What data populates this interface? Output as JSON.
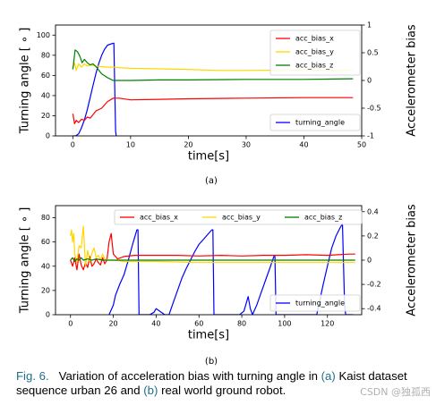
{
  "chart_data": [
    {
      "type": "line",
      "panel_label": "(a)",
      "xlabel": "time[s]",
      "ylabel_left": "Turning angle [ ∘ ]",
      "ylabel_right": "Accelerometer bias",
      "xlim": [
        -3,
        50
      ],
      "ylim_left": [
        0,
        110
      ],
      "ylim_right": [
        -1.0,
        1.0
      ],
      "xticks": [
        0,
        10,
        20,
        30,
        40,
        50
      ],
      "yticks_left": [
        0,
        20,
        40,
        60,
        80,
        100
      ],
      "yticks_right": [
        -1.0,
        -0.5,
        0.0,
        0.5,
        1.0
      ],
      "grid": false,
      "legend_top": {
        "placement": "top-right",
        "entries": [
          "acc_bias_x",
          "acc_bias_y",
          "acc_bias_z"
        ]
      },
      "legend_bottom": {
        "placement": "bottom-right",
        "entries": [
          "turning_angle"
        ]
      },
      "series": [
        {
          "name": "turning_angle",
          "axis": "left",
          "color": "#0000ff",
          "x": [
            0,
            0.5,
            1,
            1.5,
            2,
            2.5,
            3,
            3.5,
            4,
            4.5,
            5,
            5.5,
            6,
            7,
            7.1,
            7.4,
            7.5
          ],
          "y": [
            0,
            0,
            2,
            8,
            16,
            26,
            38,
            50,
            62,
            72,
            80,
            86,
            90,
            92,
            92,
            5,
            0
          ]
        },
        {
          "name": "acc_bias_x",
          "axis": "right",
          "color": "#ff0000",
          "x": [
            0,
            0.3,
            0.6,
            1,
            1.5,
            2,
            2.5,
            3,
            4,
            5,
            6,
            7,
            8,
            10,
            15,
            20,
            30,
            40,
            48.5
          ],
          "y": [
            -0.6,
            -0.78,
            -0.72,
            -0.76,
            -0.7,
            -0.72,
            -0.66,
            -0.68,
            -0.55,
            -0.5,
            -0.38,
            -0.32,
            -0.32,
            -0.35,
            -0.34,
            -0.33,
            -0.32,
            -0.31,
            -0.31
          ]
        },
        {
          "name": "acc_bias_y",
          "axis": "right",
          "color": "#ffd700",
          "x": [
            0,
            0.3,
            0.6,
            1,
            1.5,
            2,
            2.5,
            3,
            4,
            5,
            6,
            7,
            8,
            10,
            15,
            20,
            25,
            30,
            40,
            48.5
          ],
          "y": [
            0.22,
            0.32,
            0.18,
            0.3,
            0.24,
            0.3,
            0.26,
            0.28,
            0.26,
            0.25,
            0.24,
            0.24,
            0.23,
            0.22,
            0.21,
            0.2,
            0.18,
            0.18,
            0.19,
            0.18
          ]
        },
        {
          "name": "acc_bias_z",
          "axis": "right",
          "color": "#008000",
          "x": [
            0,
            0.4,
            0.8,
            1.2,
            1.6,
            2,
            2.5,
            3,
            3.5,
            4,
            5,
            6,
            7,
            10,
            15,
            20,
            30,
            40,
            48.5
          ],
          "y": [
            0.2,
            0.55,
            0.52,
            0.44,
            0.32,
            0.38,
            0.32,
            0.28,
            0.3,
            0.25,
            0.12,
            0.05,
            0.0,
            0.0,
            0.01,
            0.01,
            0.02,
            0.02,
            0.03
          ]
        }
      ]
    },
    {
      "type": "line",
      "panel_label": "(b)",
      "xlabel": "time[s]",
      "ylabel_left": "Turning angle [ ∘ ]",
      "ylabel_right": "Accelerometer bias",
      "xlim": [
        -7,
        136
      ],
      "ylim_left": [
        0,
        90
      ],
      "ylim_right": [
        -0.45,
        0.45
      ],
      "xticks": [
        0,
        20,
        40,
        60,
        80,
        100,
        120
      ],
      "yticks_left": [
        0,
        20,
        40,
        60,
        80
      ],
      "yticks_right": [
        -0.4,
        -0.2,
        0.0,
        0.2,
        0.4
      ],
      "grid": false,
      "legend_top": {
        "placement": "top-right",
        "entries": [
          "acc_bias_x",
          "acc_bias_y",
          "acc_bias_z"
        ]
      },
      "legend_bottom": {
        "placement": "bottom-right",
        "entries": [
          "turning_angle"
        ]
      },
      "series": [
        {
          "name": "turning_angle",
          "axis": "left",
          "color": "#0000ff",
          "x": [
            18,
            20,
            21,
            23,
            25,
            27,
            29,
            31,
            31.5,
            32,
            33,
            37,
            39,
            40,
            44,
            46,
            48,
            50,
            52,
            54,
            56,
            58,
            60,
            62,
            64,
            66,
            66.5,
            67,
            70,
            75,
            79,
            81,
            83,
            84,
            85,
            87,
            89,
            91,
            93,
            95,
            95.5,
            96,
            105,
            110,
            115,
            118,
            120,
            122,
            124,
            126,
            127,
            128,
            128.5,
            129,
            132
          ],
          "y": [
            0,
            8,
            16,
            25,
            33,
            45,
            58,
            70,
            70,
            0,
            0,
            0,
            2,
            5,
            0,
            0,
            10,
            20,
            30,
            38,
            45,
            52,
            58,
            62,
            66,
            70,
            70,
            0,
            0,
            0,
            0,
            3,
            15,
            5,
            0,
            8,
            18,
            28,
            38,
            48,
            48,
            0,
            0,
            0,
            0,
            25,
            40,
            55,
            65,
            72,
            75,
            8,
            0,
            0,
            0
          ]
        },
        {
          "name": "acc_bias_x",
          "axis": "right",
          "color": "#ff0000",
          "x": [
            0,
            1,
            2,
            3,
            4,
            5,
            6,
            7,
            8,
            9,
            10,
            11,
            12,
            13,
            14,
            15,
            16,
            17,
            18,
            19,
            20,
            22,
            25,
            30,
            40,
            50,
            60,
            70,
            80,
            90,
            100,
            110,
            120,
            125,
            130,
            133
          ],
          "y": [
            0.0,
            -0.05,
            0.02,
            -0.08,
            0.05,
            -0.04,
            -0.08,
            -0.02,
            -0.06,
            0.03,
            -0.05,
            -0.03,
            0.01,
            -0.02,
            -0.04,
            0.02,
            -0.03,
            0.0,
            0.15,
            0.22,
            0.05,
            0.01,
            0.03,
            0.04,
            0.04,
            0.04,
            0.035,
            0.04,
            0.035,
            0.04,
            0.04,
            0.045,
            0.04,
            0.045,
            0.05,
            0.05
          ]
        },
        {
          "name": "acc_bias_y",
          "axis": "right",
          "color": "#ffd700",
          "x": [
            0,
            0.5,
            1,
            1.5,
            2,
            3,
            4,
            5,
            6,
            7,
            8,
            9,
            10,
            11,
            12,
            13,
            14,
            15,
            16,
            18,
            20,
            25,
            30,
            40,
            60,
            80,
            100,
            120,
            133
          ],
          "y": [
            0.2,
            0.25,
            0.15,
            0.22,
            0.05,
            -0.02,
            0.12,
            0.1,
            0.28,
            -0.05,
            0.08,
            -0.02,
            0.06,
            0.1,
            0.02,
            0.04,
            0.0,
            0.05,
            0.01,
            0.0,
            0.0,
            -0.01,
            -0.01,
            -0.01,
            -0.02,
            -0.02,
            -0.02,
            -0.02,
            -0.02
          ]
        },
        {
          "name": "acc_bias_z",
          "axis": "right",
          "color": "#008000",
          "x": [
            0,
            1,
            2,
            3,
            4,
            5,
            6,
            8,
            10,
            12,
            15,
            20,
            30,
            40,
            60,
            80,
            100,
            120,
            133
          ],
          "y": [
            0.0,
            0.02,
            -0.01,
            0.01,
            0.0,
            0.02,
            0.0,
            0.01,
            0.0,
            0.01,
            0.0,
            0.0,
            0.0,
            0.0,
            0.0,
            0.0,
            0.0,
            0.0,
            0.0
          ]
        }
      ]
    }
  ],
  "caption": {
    "fig_label": "Fig. 6.",
    "text_1": "Variation of acceleration bias with turning angle in",
    "ref_a": "(a)",
    "text_2": "Kaist dataset sequence urban 26 and",
    "ref_b": "(b)",
    "text_3": "real world ground robot."
  },
  "watermark": "CSDN @独孤西"
}
